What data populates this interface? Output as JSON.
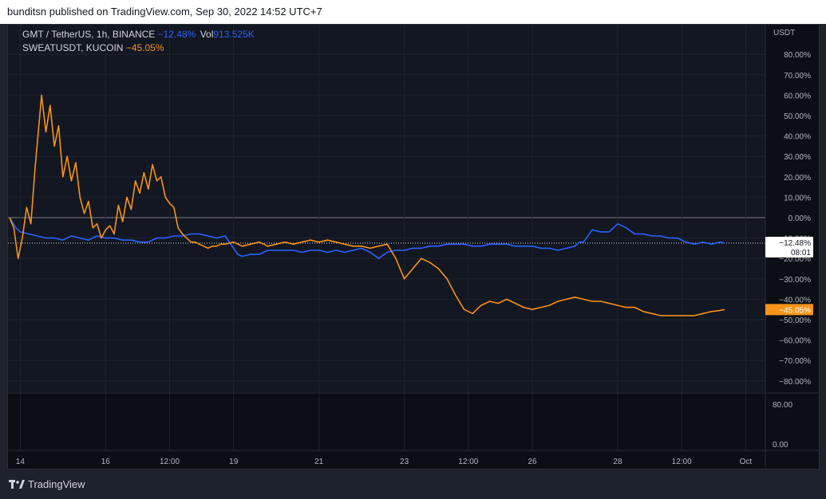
{
  "header": {
    "publish_line": "bunditsn published on TradingView.com, Sep 30, 2022 14:52 UTC+7"
  },
  "legend": {
    "line1": {
      "symbol": "GMT / TetherUS, 1h, BINANCE",
      "change": "−12.48%",
      "vol_label": "Vol",
      "vol_value": "913.525K"
    },
    "line2": {
      "symbol": "SWEATUSDT, KUCOIN",
      "change": "−45.05%"
    }
  },
  "footer": {
    "brand": "TradingView",
    "logo_icon": "tradingview-logo-icon"
  },
  "chart_data": {
    "type": "line",
    "title": "",
    "currency_label": "USDT",
    "y_unit": "%",
    "ylim": [
      -84,
      88
    ],
    "yticks": [
      80,
      70,
      60,
      50,
      40,
      30,
      20,
      10,
      0,
      -10,
      -20,
      -30,
      -40,
      -50,
      -60,
      -70,
      -80
    ],
    "ytick_labels": [
      "80.00%",
      "70.00%",
      "60.00%",
      "50.00%",
      "40.00%",
      "30.00%",
      "20.00%",
      "10.00%",
      "0.00%",
      "−10.00%",
      "−20.00%",
      "−30.00%",
      "−40.00%",
      "−50.00%",
      "−60.00%",
      "−70.00%",
      "−80.00%"
    ],
    "x_range_days": [
      13.75,
      30.6
    ],
    "xticks": [
      {
        "day": 14.0,
        "label": "14"
      },
      {
        "day": 16.0,
        "label": "16"
      },
      {
        "day": 17.5,
        "label": "12:00"
      },
      {
        "day": 19.0,
        "label": "19"
      },
      {
        "day": 21.0,
        "label": "21"
      },
      {
        "day": 23.0,
        "label": "23"
      },
      {
        "day": 24.5,
        "label": "12:00"
      },
      {
        "day": 26.0,
        "label": "26"
      },
      {
        "day": 28.0,
        "label": "28"
      },
      {
        "day": 29.5,
        "label": "12:00"
      },
      {
        "day": 31.0,
        "label": "Oct"
      }
    ],
    "zero_line": true,
    "grid": true,
    "series": [
      {
        "symbol": "GMT / TetherUS",
        "color": "#2962ff",
        "last_value_label": "−12.48%",
        "countdown": "08:01",
        "x": [
          13.75,
          13.9,
          14.0,
          14.2,
          14.4,
          14.6,
          14.8,
          15.0,
          15.2,
          15.4,
          15.6,
          15.8,
          16.0,
          16.2,
          16.4,
          16.6,
          16.8,
          17.0,
          17.2,
          17.4,
          17.6,
          17.8,
          18.0,
          18.2,
          18.4,
          18.6,
          18.8,
          19.0,
          19.1,
          19.2,
          19.4,
          19.6,
          19.8,
          20.0,
          20.2,
          20.4,
          20.6,
          20.8,
          21.0,
          21.2,
          21.4,
          21.6,
          21.8,
          22.0,
          22.2,
          22.4,
          22.6,
          22.8,
          23.0,
          23.2,
          23.4,
          23.6,
          23.8,
          24.0,
          24.2,
          24.4,
          24.6,
          24.8,
          25.0,
          25.2,
          25.4,
          25.6,
          25.8,
          26.0,
          26.2,
          26.4,
          26.6,
          26.8,
          27.0,
          27.1,
          27.2,
          27.4,
          27.6,
          27.8,
          28.0,
          28.2,
          28.4,
          28.6,
          28.8,
          29.0,
          29.2,
          29.4,
          29.6,
          29.8,
          30.0,
          30.2,
          30.4,
          30.5
        ],
        "y": [
          0,
          -5,
          -7,
          -8,
          -9,
          -10,
          -10,
          -11,
          -9,
          -10,
          -11,
          -9,
          -10,
          -10,
          -11,
          -11,
          -12,
          -12,
          -10,
          -10,
          -9,
          -9,
          -8,
          -8,
          -9,
          -10,
          -9,
          -15,
          -18,
          -19,
          -18,
          -18,
          -16,
          -16,
          -16,
          -16,
          -17,
          -16,
          -16,
          -17,
          -16,
          -17,
          -16,
          -15,
          -17,
          -20,
          -17,
          -16,
          -16,
          -15,
          -15,
          -14,
          -14,
          -13,
          -13,
          -13,
          -14,
          -14,
          -13,
          -13,
          -13,
          -14,
          -14,
          -14,
          -15,
          -15,
          -16,
          -15,
          -14,
          -12,
          -12,
          -6,
          -7,
          -7,
          -3,
          -5,
          -8,
          -8,
          -9,
          -9,
          -10,
          -10,
          -12,
          -13,
          -12,
          -13,
          -12,
          -12.48
        ]
      },
      {
        "symbol": "SWEATUSDT",
        "color": "#f7931a",
        "last_value_label": "−45.05%",
        "x": [
          13.75,
          13.85,
          13.95,
          14.05,
          14.15,
          14.25,
          14.35,
          14.5,
          14.6,
          14.7,
          14.8,
          14.9,
          15.0,
          15.1,
          15.2,
          15.3,
          15.4,
          15.5,
          15.6,
          15.7,
          15.8,
          15.9,
          16.0,
          16.1,
          16.2,
          16.3,
          16.4,
          16.5,
          16.6,
          16.7,
          16.8,
          16.9,
          17.0,
          17.1,
          17.2,
          17.3,
          17.4,
          17.5,
          17.6,
          17.7,
          17.8,
          17.9,
          18.0,
          18.1,
          18.2,
          18.3,
          18.4,
          18.5,
          18.6,
          18.7,
          18.8,
          19.0,
          19.2,
          19.4,
          19.6,
          19.8,
          20.0,
          20.2,
          20.4,
          20.6,
          20.8,
          21.0,
          21.2,
          21.4,
          21.6,
          21.8,
          22.0,
          22.2,
          22.4,
          22.6,
          22.8,
          23.0,
          23.2,
          23.4,
          23.6,
          23.8,
          24.0,
          24.2,
          24.4,
          24.6,
          24.8,
          25.0,
          25.2,
          25.4,
          25.6,
          25.8,
          26.0,
          26.2,
          26.4,
          26.6,
          26.8,
          27.0,
          27.2,
          27.4,
          27.6,
          27.8,
          28.0,
          28.2,
          28.4,
          28.6,
          28.8,
          29.0,
          29.2,
          29.4,
          29.6,
          29.8,
          30.0,
          30.2,
          30.4,
          30.5
        ],
        "y": [
          0,
          -5,
          -20,
          -10,
          5,
          -3,
          25,
          60,
          42,
          55,
          35,
          45,
          20,
          30,
          18,
          27,
          10,
          2,
          8,
          -5,
          -3,
          -10,
          -6,
          -4,
          -8,
          6,
          -2,
          10,
          4,
          18,
          12,
          22,
          14,
          26,
          18,
          20,
          10,
          7,
          5,
          -5,
          -8,
          -10,
          -12,
          -12,
          -13,
          -14,
          -15,
          -14,
          -14,
          -13,
          -13,
          -12,
          -14,
          -13,
          -12,
          -14,
          -13,
          -12,
          -13,
          -12,
          -11,
          -12,
          -11,
          -12,
          -13,
          -14,
          -14,
          -15,
          -14,
          -13,
          -20,
          -30,
          -25,
          -20,
          -22,
          -25,
          -30,
          -38,
          -45,
          -47,
          -43,
          -41,
          -42,
          -40,
          -42,
          -44,
          -45,
          -44,
          -43,
          -41,
          -40,
          -39,
          -40,
          -41,
          -41,
          -42,
          -43,
          -44,
          -44,
          -46,
          -47,
          -48,
          -48,
          -48,
          -48,
          -48,
          -47,
          -46,
          -45.5,
          -45.05
        ]
      }
    ],
    "lower_pane": {
      "yticks": [
        80,
        0
      ],
      "ytick_labels": [
        "80.00",
        "0.00"
      ]
    }
  }
}
